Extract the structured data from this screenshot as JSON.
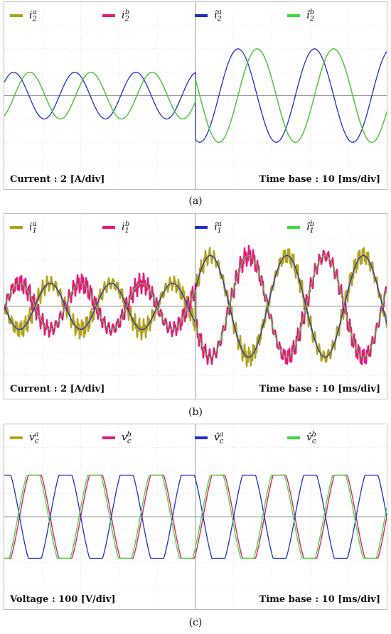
{
  "panels": [
    {
      "id": "a",
      "caption": "(a)",
      "left_text": "Current : 2 [A/div]",
      "right_text": "Time base : 10 [ms/div]",
      "legend": [
        {
          "symbol": "i",
          "sub": "2",
          "sup": "a",
          "hat": false,
          "color": "#b3a21a"
        },
        {
          "symbol": "i",
          "sub": "2",
          "sup": "b",
          "hat": false,
          "color": "#e8197a"
        },
        {
          "symbol": "i",
          "sub": "2",
          "sup": "a",
          "hat": true,
          "color": "#1d2ecf"
        },
        {
          "symbol": "i",
          "sub": "2",
          "sup": "b",
          "hat": true,
          "color": "#3ddc3d"
        }
      ]
    },
    {
      "id": "b",
      "caption": "(b)",
      "left_text": "Current : 2 [A/div]",
      "right_text": "Time base : 10 [ms/div]",
      "legend": [
        {
          "symbol": "i",
          "sub": "1",
          "sup": "a",
          "hat": false,
          "color": "#b3a21a"
        },
        {
          "symbol": "i",
          "sub": "1",
          "sup": "b",
          "hat": false,
          "color": "#e8197a"
        },
        {
          "symbol": "i",
          "sub": "1",
          "sup": "a",
          "hat": true,
          "color": "#1d2ecf"
        },
        {
          "symbol": "i",
          "sub": "1",
          "sup": "b",
          "hat": true,
          "color": "#3ddc3d"
        }
      ]
    },
    {
      "id": "c",
      "caption": "(c)",
      "left_text": "Voltage : 100 [V/div]",
      "right_text": "Time base : 10 [ms/div]",
      "legend": [
        {
          "symbol": "v",
          "sub": "c",
          "sup": "a",
          "hat": false,
          "color": "#b3a21a"
        },
        {
          "symbol": "v",
          "sub": "c",
          "sup": "b",
          "hat": false,
          "color": "#e8197a"
        },
        {
          "symbol": "v",
          "sub": "c",
          "sup": "a",
          "hat": true,
          "color": "#1d2ecf"
        },
        {
          "symbol": "v",
          "sub": "c",
          "sup": "b",
          "hat": true,
          "color": "#3ddc3d"
        }
      ]
    }
  ],
  "chart_data": [
    {
      "type": "line",
      "panel": "a",
      "x_divisions": 10,
      "y_divisions": 8,
      "x_units_per_div": "10 ms",
      "y_units_per_div": "2 A",
      "xlim_div": [
        0,
        10
      ],
      "ylim_div": [
        -4,
        4
      ],
      "grid": true,
      "legend_position": "top",
      "series": [
        {
          "name": "i2a",
          "color": "#b3a21a",
          "segments": [
            {
              "x": [
                0,
                5
              ],
              "amplitude_div": 1.0,
              "period_div": 1.6,
              "phase_deg": -60
            },
            {
              "x": [
                5,
                10
              ],
              "amplitude_div": 2.0,
              "period_div": 2.0,
              "phase_deg": -20
            }
          ]
        },
        {
          "name": "i2b",
          "color": "#e8197a",
          "segments": [
            {
              "x": [
                0,
                5
              ],
              "amplitude_div": 1.0,
              "period_div": 1.6,
              "phase_deg": -60
            },
            {
              "x": [
                5,
                10
              ],
              "amplitude_div": 2.0,
              "period_div": 2.0,
              "phase_deg": -20
            }
          ]
        },
        {
          "name": "i2a_hat",
          "color": "#1d2ecf",
          "segments": [
            {
              "x": [
                0,
                5
              ],
              "amplitude_div": 1.0,
              "period_div": 1.6,
              "phase_deg": 35
            },
            {
              "x": [
                5,
                10
              ],
              "amplitude_div": 2.0,
              "period_div": 2.0,
              "phase_deg": 70
            }
          ]
        },
        {
          "name": "i2b_hat",
          "color": "#3ddc3d",
          "segments": [
            {
              "x": [
                0,
                5
              ],
              "amplitude_div": 1.0,
              "period_div": 1.6,
              "phase_deg": -60
            },
            {
              "x": [
                5,
                10
              ],
              "amplitude_div": 2.0,
              "period_div": 2.0,
              "phase_deg": -20
            }
          ]
        }
      ]
    },
    {
      "type": "line",
      "panel": "b",
      "x_divisions": 10,
      "y_divisions": 8,
      "x_units_per_div": "10 ms",
      "y_units_per_div": "2 A",
      "xlim_div": [
        0,
        10
      ],
      "ylim_div": [
        -4,
        4
      ],
      "grid": true,
      "legend_position": "top",
      "series": [
        {
          "name": "i1a",
          "color": "#b3a21a",
          "band_div": 0.5,
          "segments": [
            {
              "x": [
                0,
                5
              ],
              "amplitude_div": 1.0,
              "period_div": 1.6,
              "phase_deg": 180
            },
            {
              "x": [
                5,
                10
              ],
              "amplitude_div": 2.2,
              "period_div": 2.0,
              "phase_deg": 200
            }
          ]
        },
        {
          "name": "i1b",
          "color": "#e8197a",
          "band_div": 0.5,
          "segments": [
            {
              "x": [
                0,
                5
              ],
              "amplitude_div": 1.0,
              "period_div": 1.6,
              "phase_deg": 0
            },
            {
              "x": [
                5,
                10
              ],
              "amplitude_div": 2.2,
              "period_div": 2.0,
              "phase_deg": 20
            }
          ]
        },
        {
          "name": "i1a_hat",
          "color": "#1d2ecf",
          "segments": [
            {
              "x": [
                0,
                5
              ],
              "amplitude_div": 1.0,
              "period_div": 1.6,
              "phase_deg": 180
            },
            {
              "x": [
                5,
                10
              ],
              "amplitude_div": 2.2,
              "period_div": 2.0,
              "phase_deg": 200
            }
          ]
        },
        {
          "name": "i1b_hat",
          "color": "#3ddc3d",
          "segments": [
            {
              "x": [
                0,
                5
              ],
              "amplitude_div": 1.0,
              "period_div": 1.6,
              "phase_deg": 0
            },
            {
              "x": [
                5,
                10
              ],
              "amplitude_div": 2.2,
              "period_div": 2.0,
              "phase_deg": 20
            }
          ]
        }
      ]
    },
    {
      "type": "line",
      "panel": "c",
      "x_divisions": 10,
      "y_divisions": 8,
      "x_units_per_div": "10 ms",
      "y_units_per_div": "100 V",
      "xlim_div": [
        0,
        10
      ],
      "ylim_div": [
        -4,
        4
      ],
      "grid": true,
      "legend_position": "top",
      "series": [
        {
          "name": "vca",
          "color": "#b3a21a",
          "segments": [
            {
              "x": [
                0,
                10
              ],
              "amplitude_div": 2.0,
              "period_div": 1.6,
              "phase_deg": -90
            }
          ]
        },
        {
          "name": "vcb",
          "color": "#e8197a",
          "segments": [
            {
              "x": [
                0,
                10
              ],
              "amplitude_div": 2.0,
              "period_div": 1.6,
              "phase_deg": -90
            }
          ]
        },
        {
          "name": "vca_hat",
          "color": "#1d2ecf",
          "segments": [
            {
              "x": [
                0,
                10
              ],
              "amplitude_div": 2.0,
              "period_div": 1.6,
              "phase_deg": 90
            }
          ]
        },
        {
          "name": "vcb_hat",
          "color": "#3ddc3d",
          "segments": [
            {
              "x": [
                0,
                10
              ],
              "amplitude_div": 2.0,
              "period_div": 1.6,
              "phase_deg": -80
            }
          ]
        }
      ]
    }
  ]
}
